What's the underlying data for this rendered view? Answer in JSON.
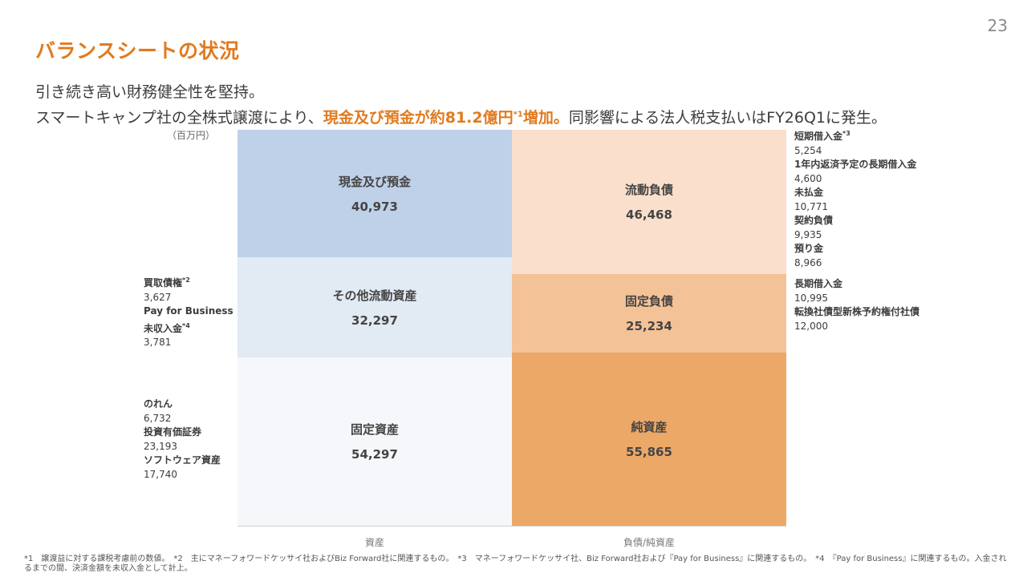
{
  "page_number": "23",
  "title": "バランスシートの状況",
  "subtitle_line1": "引き続き高い財務健全性を堅持。",
  "subtitle_line2": {
    "pre": "スマートキャンプ社の全株式譲渡により、",
    "highlight": "現金及び預金が約81.2億円",
    "sup": "*1",
    "highlight2": "増加。",
    "post": "同影響による法人税支払いはFY26Q1に発生。"
  },
  "unit": "（百万円）",
  "chart_data": {
    "type": "stacked-bar",
    "title": "バランスシートの状況",
    "unit": "百万円",
    "categories": [
      "資産",
      "負債/純資産"
    ],
    "series": [
      {
        "name": "現金及び預金",
        "category": "資産",
        "value": 40973,
        "display": "40,973",
        "color": "#bfd1e8"
      },
      {
        "name": "その他流動資産",
        "category": "資産",
        "value": 32297,
        "display": "32,297",
        "color": "#e2eaf4"
      },
      {
        "name": "固定資産",
        "category": "資産",
        "value": 54297,
        "display": "54,297",
        "color": "#f5f7fa"
      },
      {
        "name": "流動負債",
        "category": "負債/純資産",
        "value": 46468,
        "display": "46,468",
        "color": "#fadfcc"
      },
      {
        "name": "固定負債",
        "category": "負債/純資産",
        "value": 25234,
        "display": "25,234",
        "color": "#f4c297"
      },
      {
        "name": "純資産",
        "category": "負債/純資産",
        "value": 55865,
        "display": "55,865",
        "color": "#eca866"
      }
    ],
    "axis_labels": [
      "資産",
      "負債/純資産"
    ]
  },
  "left_notes": [
    {
      "items": [
        {
          "label": "買取債権",
          "sup": "*2",
          "value": "3,627"
        },
        {
          "label": "Pay for Business",
          "sup": "",
          "value": ""
        },
        {
          "label": "未収入金",
          "sup": "*4",
          "value": "3,781"
        }
      ]
    },
    {
      "items": [
        {
          "label": "のれん",
          "sup": "",
          "value": "6,732"
        },
        {
          "label": "投資有価証券",
          "sup": "",
          "value": "23,193"
        },
        {
          "label": "ソフトウェア資産",
          "sup": "",
          "value": "17,740"
        }
      ]
    }
  ],
  "right_notes": [
    {
      "items": [
        {
          "label": "短期借入金",
          "sup": "*3",
          "value": "5,254"
        },
        {
          "label": "1年内返済予定の長期借入金",
          "sup": "",
          "value": "4,600"
        },
        {
          "label": "未払金",
          "sup": "",
          "value": "10,771"
        },
        {
          "label": "契約負債",
          "sup": "",
          "value": "9,935"
        },
        {
          "label": "預り金",
          "sup": "",
          "value": "8,966"
        }
      ]
    },
    {
      "items": [
        {
          "label": "長期借入金",
          "sup": "",
          "value": "10,995"
        },
        {
          "label": "転換社債型新株予約権付社債",
          "sup": "",
          "value": "12,000"
        }
      ]
    }
  ],
  "footer": "*1　譲渡益に対する課税考慮前の数値。　*2　主にマネーフォワードケッサイ社およびBiz Forward社に関連するもの。　*3　マネーフォワードケッサイ社、Biz Forward社および『Pay for Business』に関連するもの。　*4　『Pay for Business』に関連するもの。入金されるまでの間、決済金額を未収入金として計上。"
}
